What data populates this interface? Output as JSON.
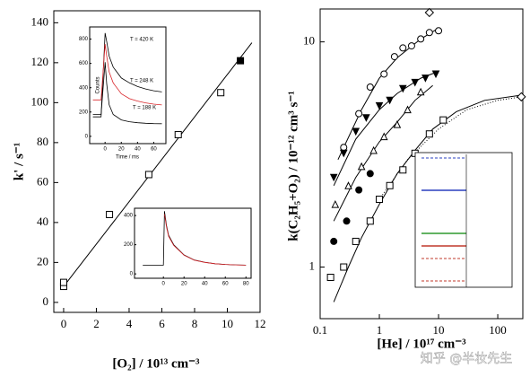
{
  "chart_data": [
    {
      "type": "scatter",
      "xlabel": "[O₂] / 10¹³ cm⁻³",
      "ylabel": "k' / s⁻¹",
      "xlim": [
        -0.6,
        12
      ],
      "ylim": [
        -5,
        146
      ],
      "xticks": [
        0,
        2,
        4,
        6,
        8,
        10,
        12
      ],
      "yticks": [
        0,
        20,
        40,
        60,
        80,
        100,
        120,
        140
      ],
      "series": [
        {
          "marker": "line",
          "color": "#000000",
          "x": [
            0,
            11.5
          ],
          "values": [
            8,
            130
          ]
        },
        {
          "marker": "square-open",
          "color": "#000000",
          "x": [
            0,
            0,
            2.8,
            5.2,
            7,
            9.6
          ],
          "values": [
            8,
            10,
            44,
            64,
            84,
            105
          ]
        },
        {
          "marker": "square-filled",
          "color": "#000000",
          "x": [
            10.8
          ],
          "values": [
            121
          ]
        }
      ]
    },
    {
      "type": "line",
      "xlabel": "Time / ms",
      "ylabel": "Counts",
      "xlim": [
        -19,
        75
      ],
      "ylim": [
        -60,
        900
      ],
      "xticks": [
        0,
        20,
        40,
        60
      ],
      "yticks": [
        0,
        200,
        400,
        600,
        800
      ],
      "annotations": [
        "T = 420 K",
        "T = 248 K",
        "T = 188 K"
      ],
      "series": [
        {
          "marker": "line",
          "color": "#000000",
          "x": [
            -15,
            -5,
            0,
            2,
            5,
            10,
            20,
            30,
            40,
            50,
            60,
            70
          ],
          "values": [
            160,
            160,
            850,
            780,
            660,
            570,
            480,
            440,
            410,
            390,
            375,
            365
          ]
        },
        {
          "marker": "line",
          "color": "#d9262b",
          "x": [
            -15,
            -5,
            0,
            2,
            5,
            10,
            20,
            30,
            40,
            50,
            60,
            70
          ],
          "values": [
            300,
            300,
            760,
            660,
            530,
            440,
            350,
            310,
            290,
            275,
            265,
            258
          ]
        },
        {
          "marker": "line",
          "color": "#000000",
          "x": [
            -15,
            -5,
            0,
            2,
            5,
            10,
            20,
            30,
            40,
            50,
            60,
            70
          ],
          "values": [
            180,
            180,
            610,
            430,
            260,
            180,
            135,
            120,
            112,
            108,
            105,
            104
          ]
        }
      ]
    },
    {
      "type": "line",
      "xlim": [
        -28,
        85
      ],
      "ylim": [
        -30,
        450
      ],
      "xticks": [
        0,
        20,
        40,
        60,
        80
      ],
      "yticks": [
        0,
        200,
        400
      ],
      "series": [
        {
          "marker": "line",
          "color": "#000000",
          "x": [
            -20,
            -5,
            0,
            1,
            3,
            5,
            10,
            20,
            30,
            40,
            50,
            60,
            70,
            80
          ],
          "values": [
            60,
            60,
            60,
            430,
            330,
            265,
            200,
            130,
            95,
            80,
            70,
            65,
            62,
            60
          ]
        },
        {
          "marker": "line",
          "color": "#d9262b",
          "x": [
            1,
            3,
            5,
            10,
            20,
            30,
            40,
            50,
            60,
            70,
            80
          ],
          "values": [
            410,
            320,
            258,
            195,
            128,
            94,
            79,
            70,
            65,
            62,
            60
          ]
        }
      ]
    },
    {
      "type": "scatter",
      "xlabel": "[He] / 10¹⁷ cm⁻³",
      "ylabel": "k(C₂H₅+O₂) / 10⁻¹² cm³ s⁻¹",
      "xlog": true,
      "ylog": true,
      "xlim": [
        0.1,
        265
      ],
      "ylim": [
        0.59,
        14
      ],
      "xticks": [
        0.1,
        1,
        10,
        100
      ],
      "yticks": [
        1,
        10
      ],
      "series": [
        {
          "marker": "line",
          "color": "#000000",
          "x": [
            0.2,
            0.5,
            1,
            2,
            5,
            10
          ],
          "values": [
            3.0,
            5.0,
            6.9,
            8.5,
            10.3,
            11.5
          ]
        },
        {
          "marker": "line",
          "color": "#000000",
          "x": [
            0.17,
            0.4,
            1,
            2,
            5,
            10
          ],
          "values": [
            2.3,
            3.7,
            5.0,
            5.9,
            6.9,
            7.4
          ]
        },
        {
          "marker": "line",
          "color": "#000000",
          "x": [
            0.17,
            0.4,
            1,
            2,
            4,
            8
          ],
          "values": [
            1.6,
            2.5,
            3.6,
            4.4,
            5.5,
            6.4
          ]
        },
        {
          "marker": "line",
          "color": "#000000",
          "x": [
            0.17,
            0.3,
            0.5,
            1,
            2,
            4,
            8,
            20,
            60,
            250
          ],
          "values": [
            0.7,
            1.0,
            1.35,
            1.9,
            2.6,
            3.3,
            4.1,
            4.9,
            5.5,
            5.8
          ]
        },
        {
          "marker": "dotted",
          "color": "#000000",
          "x": [
            1,
            3,
            10,
            30,
            100,
            250
          ],
          "values": [
            2.0,
            3.0,
            4.1,
            5.0,
            5.5,
            5.7
          ]
        },
        {
          "marker": "circle-open",
          "color": "#000000",
          "x": [
            0.25,
            0.45,
            0.7,
            1.2,
            1.8,
            2.5,
            3.5,
            5,
            7,
            10
          ],
          "values": [
            3.4,
            4.8,
            6.3,
            7.2,
            8.6,
            9.4,
            9.6,
            10.3,
            11,
            11.2
          ]
        },
        {
          "marker": "triangle-filled",
          "color": "#000000",
          "x": [
            0.17,
            0.25,
            0.4,
            0.6,
            1,
            1.5,
            2.5,
            4,
            6,
            9
          ],
          "values": [
            2.5,
            3.2,
            4.0,
            4.6,
            5.2,
            5.5,
            6.2,
            6.6,
            6.9,
            7.2
          ]
        },
        {
          "marker": "triangle-open",
          "color": "#000000",
          "x": [
            0.18,
            0.3,
            0.5,
            0.8,
            1.2,
            2,
            3,
            5
          ],
          "values": [
            1.9,
            2.3,
            2.8,
            3.3,
            3.8,
            4.3,
            5.0,
            6.0
          ]
        },
        {
          "marker": "circle-filled",
          "color": "#000000",
          "x": [
            0.17,
            0.28,
            0.45,
            0.7
          ],
          "values": [
            1.3,
            1.6,
            2.2,
            2.6
          ]
        },
        {
          "marker": "square-open",
          "color": "#000000",
          "x": [
            0.15,
            0.25,
            0.4,
            0.7,
            1,
            1.5,
            2.5,
            4,
            7,
            12
          ],
          "values": [
            0.9,
            1.0,
            1.3,
            1.6,
            2.0,
            2.3,
            2.7,
            3.2,
            3.9,
            4.5
          ]
        },
        {
          "marker": "diamond-open",
          "color": "#000000",
          "x": [
            7,
            250
          ],
          "values": [
            13.5,
            5.7
          ]
        }
      ]
    }
  ],
  "watermark": "知乎 @半妆先生"
}
